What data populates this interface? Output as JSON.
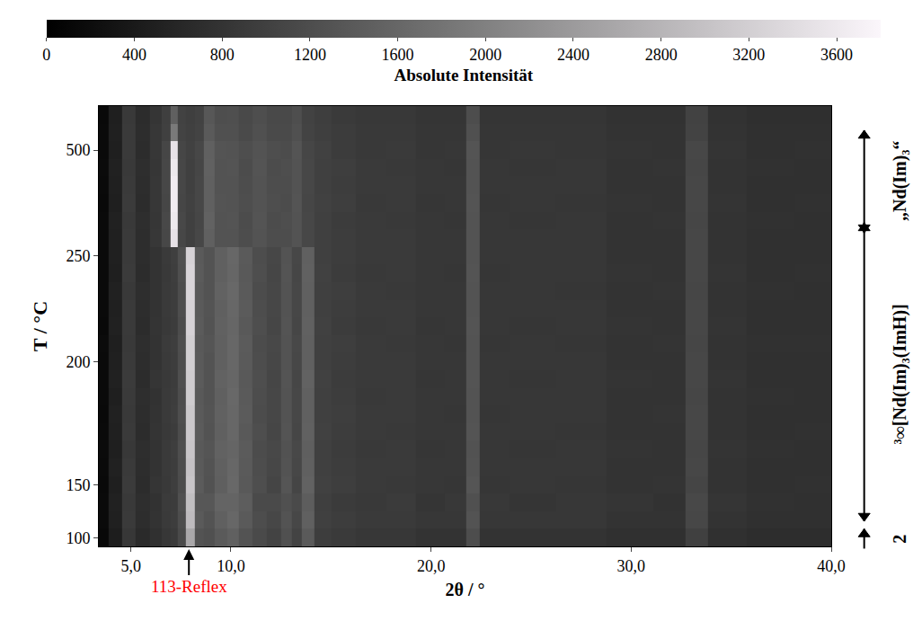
{
  "chart_data": {
    "type": "heatmap",
    "x_label": "2θ / °",
    "y_label": "T / °C",
    "x": [
      3.6,
      4.2,
      4.9,
      5.6,
      6.3,
      6.8,
      7.15,
      7.5,
      8.0,
      8.4,
      8.9,
      9.5,
      10.1,
      10.7,
      11.4,
      12.2,
      12.8,
      13.3,
      13.8,
      14.5,
      15.5,
      17,
      18.5,
      20,
      21.4,
      22.1,
      22.8,
      25,
      27.5,
      30,
      32.2,
      33.2,
      34.5,
      37,
      39.4
    ],
    "categories": [
      "100",
      null,
      null,
      "150",
      null,
      null,
      null,
      null,
      null,
      null,
      "200",
      null,
      null,
      null,
      null,
      null,
      "250",
      null,
      null,
      null,
      null,
      null,
      "500",
      null,
      null
    ],
    "z": [
      [
        120,
        450,
        850,
        650,
        750,
        850,
        900,
        1150,
        2600,
        1300,
        1250,
        1400,
        1500,
        1300,
        1150,
        1050,
        1250,
        1050,
        1400,
        950,
        900,
        850,
        850,
        800,
        800,
        1200,
        800,
        800,
        800,
        750,
        750,
        1000,
        750,
        700,
        700
      ],
      [
        150,
        500,
        900,
        700,
        800,
        900,
        950,
        1200,
        2900,
        1400,
        1300,
        1500,
        1600,
        1400,
        1200,
        1100,
        1300,
        1100,
        1500,
        1000,
        950,
        900,
        900,
        850,
        850,
        1300,
        850,
        850,
        850,
        800,
        800,
        1100,
        800,
        750,
        750
      ],
      [
        160,
        520,
        880,
        720,
        780,
        920,
        940,
        1250,
        2950,
        1350,
        1350,
        1550,
        1550,
        1450,
        1150,
        1150,
        1250,
        1150,
        1450,
        980,
        920,
        880,
        920,
        830,
        870,
        1250,
        870,
        830,
        860,
        820,
        780,
        1120,
        820,
        770,
        740
      ],
      [
        140,
        480,
        920,
        690,
        820,
        880,
        960,
        1180,
        3050,
        1420,
        1280,
        1480,
        1620,
        1380,
        1220,
        1080,
        1320,
        1080,
        1520,
        1020,
        960,
        910,
        880,
        860,
        840,
        1320,
        840,
        860,
        840,
        790,
        810,
        1080,
        790,
        740,
        760
      ],
      [
        150,
        510,
        900,
        700,
        800,
        900,
        950,
        1200,
        3000,
        1400,
        1300,
        1500,
        1600,
        1400,
        1200,
        1100,
        1300,
        1100,
        1500,
        1000,
        950,
        900,
        900,
        850,
        850,
        1300,
        850,
        850,
        850,
        800,
        800,
        1100,
        800,
        750,
        750
      ],
      [
        170,
        490,
        870,
        710,
        790,
        910,
        970,
        1220,
        3050,
        1380,
        1320,
        1520,
        1580,
        1420,
        1180,
        1120,
        1280,
        1120,
        1480,
        990,
        940,
        890,
        910,
        840,
        860,
        1280,
        860,
        840,
        850,
        810,
        790,
        1090,
        810,
        760,
        740
      ],
      [
        150,
        500,
        910,
        680,
        810,
        890,
        940,
        1190,
        3100,
        1410,
        1290,
        1490,
        1610,
        1390,
        1210,
        1090,
        1310,
        1090,
        1510,
        1010,
        950,
        900,
        890,
        850,
        850,
        1310,
        850,
        850,
        840,
        800,
        800,
        1100,
        800,
        750,
        760
      ],
      [
        140,
        520,
        890,
        700,
        800,
        900,
        960,
        1210,
        3100,
        1400,
        1310,
        1510,
        1600,
        1410,
        1190,
        1110,
        1300,
        1110,
        1500,
        1000,
        960,
        910,
        900,
        860,
        840,
        1290,
        840,
        860,
        850,
        790,
        810,
        1110,
        790,
        740,
        750
      ],
      [
        160,
        490,
        900,
        720,
        780,
        910,
        950,
        1200,
        3150,
        1390,
        1300,
        1500,
        1620,
        1400,
        1200,
        1100,
        1290,
        1100,
        1490,
        990,
        950,
        890,
        900,
        850,
        850,
        1300,
        860,
        850,
        860,
        800,
        800,
        1090,
        800,
        760,
        750
      ],
      [
        150,
        510,
        920,
        690,
        820,
        890,
        940,
        1230,
        3150,
        1420,
        1290,
        1520,
        1590,
        1390,
        1210,
        1090,
        1310,
        1090,
        1520,
        1010,
        940,
        900,
        910,
        840,
        860,
        1310,
        850,
        840,
        850,
        810,
        790,
        1100,
        810,
        750,
        740
      ],
      [
        150,
        500,
        900,
        700,
        800,
        900,
        950,
        1200,
        3200,
        1400,
        1300,
        1500,
        1600,
        1400,
        1200,
        1100,
        1300,
        1100,
        1500,
        1000,
        950,
        900,
        900,
        850,
        850,
        1300,
        850,
        850,
        850,
        800,
        800,
        1100,
        800,
        750,
        750
      ],
      [
        170,
        480,
        880,
        710,
        790,
        920,
        960,
        1220,
        3200,
        1380,
        1320,
        1490,
        1610,
        1420,
        1190,
        1120,
        1290,
        1120,
        1490,
        990,
        960,
        910,
        890,
        860,
        840,
        1290,
        840,
        860,
        840,
        790,
        810,
        1090,
        790,
        760,
        760
      ],
      [
        140,
        520,
        910,
        690,
        810,
        890,
        940,
        1190,
        3250,
        1410,
        1290,
        1510,
        1590,
        1390,
        1210,
        1090,
        1310,
        1090,
        1510,
        1010,
        940,
        890,
        910,
        840,
        860,
        1310,
        860,
        840,
        860,
        810,
        790,
        1110,
        810,
        740,
        740
      ],
      [
        150,
        500,
        900,
        700,
        800,
        900,
        950,
        1210,
        3250,
        1400,
        1310,
        1500,
        1600,
        1410,
        1200,
        1100,
        1300,
        1110,
        1500,
        1000,
        950,
        900,
        900,
        850,
        850,
        1300,
        850,
        850,
        850,
        800,
        800,
        1100,
        800,
        750,
        750
      ],
      [
        160,
        510,
        890,
        720,
        800,
        910,
        950,
        1200,
        3300,
        1390,
        1300,
        1520,
        1620,
        1400,
        1190,
        1110,
        1290,
        1100,
        1490,
        990,
        960,
        910,
        890,
        850,
        860,
        1290,
        860,
        850,
        840,
        800,
        810,
        1090,
        790,
        760,
        750
      ],
      [
        150,
        490,
        920,
        690,
        790,
        890,
        960,
        1230,
        3300,
        1420,
        1290,
        1490,
        1590,
        1390,
        1210,
        1090,
        1310,
        1090,
        1510,
        1010,
        940,
        890,
        910,
        860,
        840,
        1310,
        840,
        860,
        860,
        810,
        790,
        1100,
        810,
        740,
        760
      ],
      [
        150,
        500,
        900,
        700,
        800,
        900,
        980,
        1250,
        3250,
        1400,
        1300,
        1500,
        1600,
        1400,
        1200,
        1100,
        1300,
        1100,
        1500,
        1000,
        950,
        900,
        900,
        850,
        850,
        1300,
        850,
        850,
        850,
        800,
        800,
        1100,
        800,
        750,
        750
      ],
      [
        150,
        500,
        900,
        700,
        850,
        1100,
        3500,
        1100,
        1000,
        1100,
        1500,
        1300,
        1300,
        1200,
        1300,
        1200,
        1200,
        1300,
        1100,
        1000,
        950,
        900,
        900,
        850,
        850,
        1300,
        850,
        850,
        850,
        800,
        800,
        1100,
        800,
        750,
        750
      ],
      [
        160,
        520,
        880,
        720,
        840,
        1120,
        3600,
        1120,
        990,
        1090,
        1520,
        1290,
        1310,
        1190,
        1310,
        1190,
        1210,
        1290,
        1110,
        990,
        940,
        910,
        890,
        860,
        840,
        1290,
        860,
        840,
        860,
        790,
        810,
        1090,
        790,
        760,
        740
      ],
      [
        140,
        480,
        920,
        690,
        860,
        1090,
        3650,
        1090,
        1010,
        1110,
        1490,
        1310,
        1290,
        1210,
        1290,
        1210,
        1190,
        1310,
        1090,
        1010,
        960,
        890,
        910,
        840,
        860,
        1310,
        840,
        860,
        840,
        810,
        790,
        1110,
        810,
        740,
        760
      ],
      [
        150,
        500,
        900,
        700,
        850,
        1100,
        3650,
        1100,
        1000,
        1100,
        1500,
        1300,
        1300,
        1200,
        1300,
        1200,
        1200,
        1300,
        1100,
        1000,
        950,
        900,
        900,
        850,
        850,
        1300,
        850,
        850,
        850,
        800,
        800,
        1100,
        800,
        750,
        750
      ],
      [
        170,
        510,
        890,
        710,
        840,
        1110,
        3600,
        1110,
        990,
        1090,
        1510,
        1290,
        1310,
        1190,
        1310,
        1190,
        1210,
        1290,
        1110,
        990,
        960,
        910,
        890,
        860,
        840,
        1290,
        860,
        840,
        860,
        790,
        810,
        1090,
        790,
        760,
        740
      ],
      [
        150,
        490,
        910,
        690,
        860,
        1090,
        3500,
        1090,
        1010,
        1110,
        1490,
        1310,
        1290,
        1210,
        1290,
        1210,
        1190,
        1310,
        1090,
        1010,
        940,
        890,
        910,
        840,
        860,
        1310,
        840,
        860,
        840,
        810,
        790,
        1110,
        810,
        740,
        760
      ],
      [
        150,
        500,
        900,
        700,
        850,
        1000,
        1900,
        1050,
        1000,
        1050,
        1400,
        1250,
        1250,
        1150,
        1250,
        1150,
        1150,
        1250,
        1050,
        980,
        930,
        880,
        880,
        840,
        840,
        1250,
        840,
        840,
        840,
        790,
        790,
        1050,
        790,
        740,
        740
      ],
      [
        140,
        480,
        880,
        690,
        830,
        980,
        1500,
        1030,
        980,
        1030,
        1350,
        1220,
        1230,
        1130,
        1220,
        1130,
        1130,
        1220,
        1030,
        960,
        910,
        870,
        870,
        830,
        830,
        1200,
        830,
        830,
        830,
        780,
        780,
        1030,
        780,
        730,
        730
      ]
    ],
    "xlim": [
      3.4,
      40.0
    ],
    "xticks": [
      {
        "value": 5,
        "label": "5,0"
      },
      {
        "value": 10,
        "label": "10,0"
      },
      {
        "value": 20,
        "label": "20,0"
      },
      {
        "value": 30,
        "label": "30,0"
      },
      {
        "value": 40,
        "label": "40,0"
      }
    ],
    "colorbar": {
      "title": "Absolute Intensität",
      "range": [
        0,
        3800
      ],
      "ticks": [
        0,
        400,
        800,
        1200,
        1600,
        2000,
        2400,
        2800,
        3200,
        3600
      ]
    },
    "annotations": [
      {
        "text": "113-Reflex",
        "x": 7.9,
        "color": "red"
      }
    ],
    "phase_labels": [
      "„Nd(Im)₃“",
      "³∞[Nd(Im)₃(ImH)]",
      "2"
    ]
  }
}
